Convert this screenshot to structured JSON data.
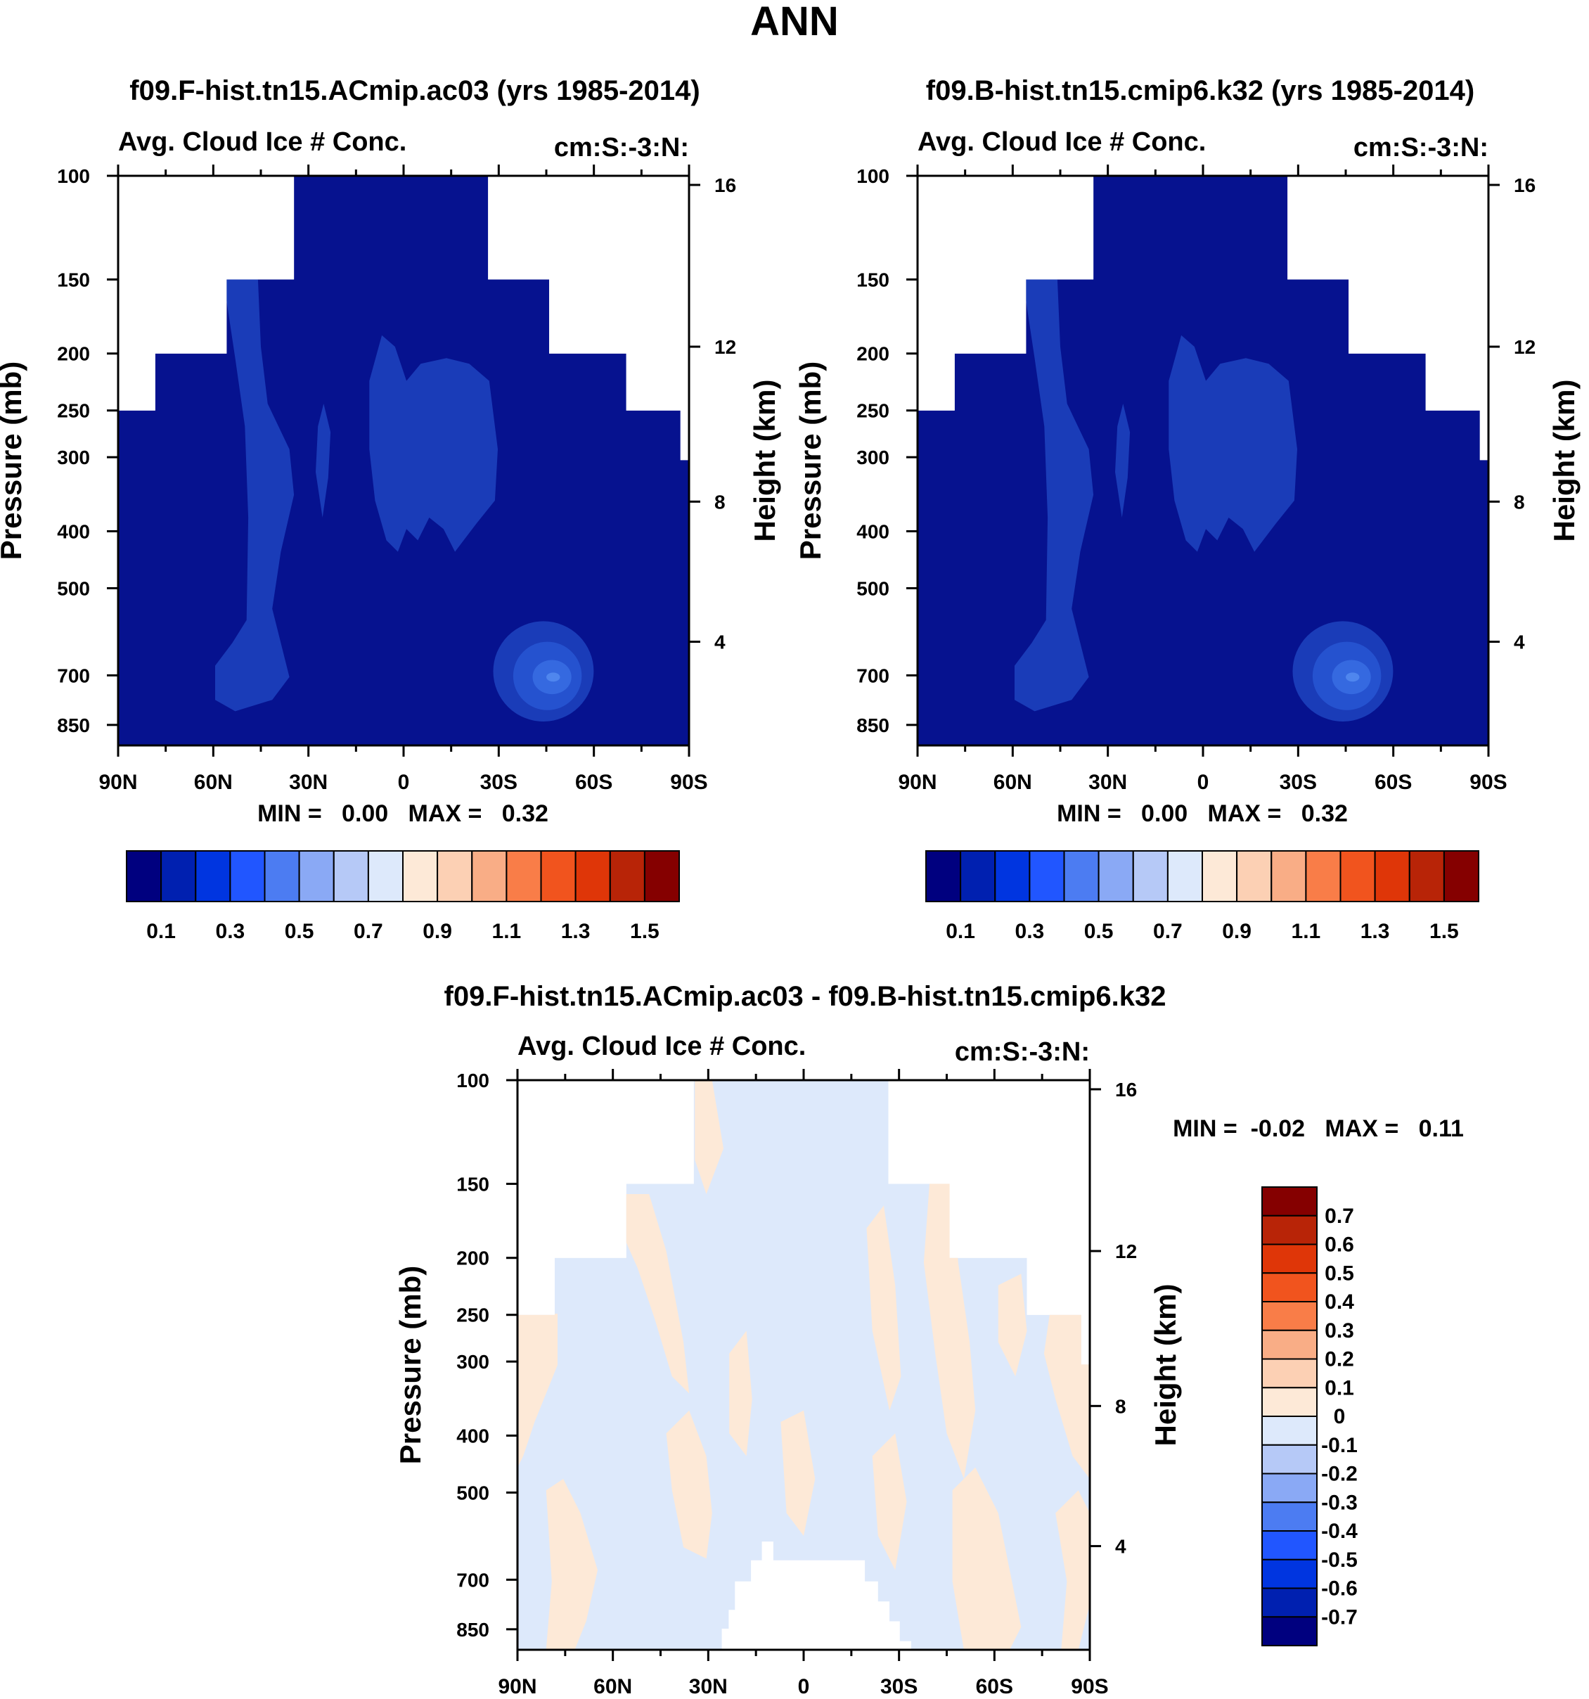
{
  "figure_title": "ANN",
  "chart_data": [
    {
      "type": "heatmap",
      "title": "f09.F-hist.tn15.ACmip.ac03 (yrs 1985-2014)",
      "left_label": "Avg. Cloud Ice # Conc.",
      "right_label": "cm:S:-3:N:",
      "xlabel": "",
      "ylabel": "Pressure (mb)",
      "ylabel_right": "Height (km)",
      "x_ticks": [
        "90N",
        "60N",
        "30N",
        "0",
        "30S",
        "60S",
        "90S"
      ],
      "y_ticks": [
        "100",
        "150",
        "200",
        "250",
        "300",
        "400",
        "500",
        "700",
        "850"
      ],
      "y_ticks_right": [
        "16",
        "12",
        "8",
        "4"
      ],
      "stats": "MIN =   0.00   MAX =   0.32",
      "colorbar_labels": [
        "0.1",
        "0.3",
        "0.5",
        "0.7",
        "0.9",
        "1.1",
        "1.3",
        "1.5"
      ],
      "colorbar_colors": [
        "#00007f",
        "#0020b0",
        "#0035e0",
        "#2156ff",
        "#4c7cf2",
        "#8aa9f5",
        "#b6c9f7",
        "#dde9fb",
        "#fde9d7",
        "#fcd0b4",
        "#f9ad86",
        "#f97d48",
        "#f1541e",
        "#df3608",
        "#b82407",
        "#850000"
      ],
      "field_levels_color": [
        "#06128f",
        "#1a3cb8",
        "#2552cf",
        "#3569e0"
      ]
    },
    {
      "type": "heatmap",
      "title": "f09.B-hist.tn15.cmip6.k32 (yrs 1985-2014)",
      "left_label": "Avg. Cloud Ice # Conc.",
      "right_label": "cm:S:-3:N:",
      "xlabel": "",
      "ylabel": "Pressure (mb)",
      "ylabel_right": "Height (km)",
      "x_ticks": [
        "90N",
        "60N",
        "30N",
        "0",
        "30S",
        "60S",
        "90S"
      ],
      "y_ticks": [
        "100",
        "150",
        "200",
        "250",
        "300",
        "400",
        "500",
        "700",
        "850"
      ],
      "y_ticks_right": [
        "16",
        "12",
        "8",
        "4"
      ],
      "stats": "MIN =   0.00   MAX =   0.32",
      "colorbar_labels": [
        "0.1",
        "0.3",
        "0.5",
        "0.7",
        "0.9",
        "1.1",
        "1.3",
        "1.5"
      ],
      "colorbar_colors": [
        "#00007f",
        "#0020b0",
        "#0035e0",
        "#2156ff",
        "#4c7cf2",
        "#8aa9f5",
        "#b6c9f7",
        "#dde9fb",
        "#fde9d7",
        "#fcd0b4",
        "#f9ad86",
        "#f97d48",
        "#f1541e",
        "#df3608",
        "#b82407",
        "#850000"
      ]
    },
    {
      "type": "heatmap",
      "title": "f09.F-hist.tn15.ACmip.ac03 - f09.B-hist.tn15.cmip6.k32",
      "left_label": "Avg. Cloud Ice # Conc.",
      "right_label": "cm:S:-3:N:",
      "xlabel": "",
      "ylabel": "Pressure (mb)",
      "ylabel_right": "Height (km)",
      "x_ticks": [
        "90N",
        "60N",
        "30N",
        "0",
        "30S",
        "60S",
        "90S"
      ],
      "y_ticks": [
        "100",
        "150",
        "200",
        "250",
        "300",
        "400",
        "500",
        "700",
        "850"
      ],
      "y_ticks_right": [
        "16",
        "12",
        "8",
        "4"
      ],
      "stats": "MIN =  -0.02   MAX =   0.11",
      "colorbar_labels": [
        "0.7",
        "0.6",
        "0.5",
        "0.4",
        "0.3",
        "0.2",
        "0.1",
        "0",
        "-0.1",
        "-0.2",
        "-0.3",
        "-0.4",
        "-0.5",
        "-0.6",
        "-0.7"
      ],
      "colorbar_colors": [
        "#850000",
        "#b82407",
        "#df3608",
        "#f1541e",
        "#f97d48",
        "#f9ad86",
        "#fcd0b4",
        "#fde9d7",
        "#dde9fb",
        "#b6c9f7",
        "#8aa9f5",
        "#4c7cf2",
        "#2156ff",
        "#0035e0",
        "#0020b0",
        "#00007f"
      ]
    }
  ]
}
